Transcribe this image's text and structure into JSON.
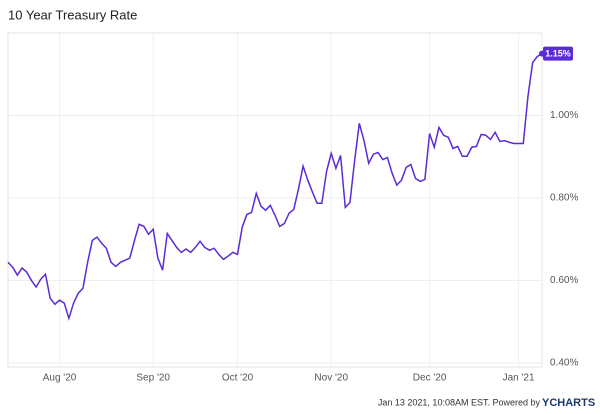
{
  "chart_data": {
    "type": "line",
    "title": "10 Year Treasury Rate",
    "footer": "Jan 13 2021, 10:08AM EST. Powered by",
    "brand": "YCHARTS",
    "color": "#5b2bd6",
    "categories": [
      null,
      null,
      null,
      null,
      null,
      null,
      null,
      null,
      null,
      null,
      null,
      "Aug '20",
      null,
      null,
      null,
      null,
      null,
      null,
      null,
      null,
      null,
      null,
      null,
      null,
      null,
      null,
      null,
      null,
      null,
      null,
      null,
      "Sep '20",
      null,
      null,
      null,
      null,
      null,
      null,
      null,
      null,
      null,
      null,
      null,
      null,
      null,
      null,
      null,
      null,
      null,
      "Oct '20",
      null,
      null,
      null,
      null,
      null,
      null,
      null,
      null,
      null,
      null,
      null,
      null,
      null,
      null,
      null,
      null,
      null,
      null,
      null,
      "Nov '20",
      null,
      null,
      null,
      null,
      null,
      null,
      null,
      null,
      null,
      null,
      null,
      null,
      null,
      null,
      null,
      null,
      null,
      null,
      null,
      null,
      "Dec '20",
      null,
      null,
      null,
      null,
      null,
      null,
      null,
      null,
      null,
      null,
      null,
      null,
      null,
      null,
      null,
      null,
      null,
      null,
      "Jan '21",
      null,
      null,
      null,
      null,
      null
    ],
    "values": [
      0.644,
      0.632,
      0.613,
      0.63,
      0.62,
      0.6,
      0.584,
      0.603,
      0.615,
      0.557,
      0.542,
      0.552,
      0.545,
      0.508,
      0.545,
      0.569,
      0.581,
      0.644,
      0.697,
      0.705,
      0.69,
      0.678,
      0.644,
      0.634,
      0.644,
      0.649,
      0.654,
      0.697,
      0.736,
      0.731,
      0.712,
      0.724,
      0.654,
      0.625,
      0.714,
      0.697,
      0.68,
      0.668,
      0.676,
      0.668,
      0.68,
      0.695,
      0.68,
      0.673,
      0.678,
      0.663,
      0.651,
      0.659,
      0.668,
      0.663,
      0.729,
      0.76,
      0.765,
      0.811,
      0.78,
      0.77,
      0.782,
      0.758,
      0.731,
      0.738,
      0.763,
      0.772,
      0.821,
      0.877,
      0.843,
      0.814,
      0.787,
      0.787,
      0.864,
      0.908,
      0.872,
      0.903,
      0.777,
      0.789,
      0.891,
      0.981,
      0.939,
      0.884,
      0.906,
      0.91,
      0.893,
      0.898,
      0.86,
      0.831,
      0.843,
      0.874,
      0.881,
      0.847,
      0.84,
      0.845,
      0.956,
      0.923,
      0.971,
      0.952,
      0.947,
      0.92,
      0.925,
      0.901,
      0.901,
      0.923,
      0.925,
      0.954,
      0.952,
      0.942,
      0.959,
      0.937,
      0.939,
      0.935,
      0.932,
      0.932,
      0.932,
      1.046,
      1.128,
      1.143,
      1.15
    ],
    "value_labels": [
      null,
      null,
      null,
      null,
      null,
      null,
      null,
      null,
      null,
      null,
      null,
      null,
      null,
      null,
      null,
      null,
      null,
      null,
      null,
      null,
      null,
      null,
      null,
      null,
      null,
      null,
      null,
      null,
      null,
      null,
      null,
      null,
      null,
      null,
      null,
      null,
      null,
      null,
      null,
      null,
      null,
      null,
      null,
      null,
      null,
      null,
      null,
      null,
      null,
      null,
      null,
      null,
      null,
      null,
      null,
      null,
      null,
      null,
      null,
      null,
      null,
      null,
      null,
      null,
      null,
      null,
      null,
      null,
      null,
      null,
      null,
      null,
      null,
      null,
      null,
      null,
      null,
      null,
      null,
      null,
      null,
      null,
      null,
      null,
      null,
      null,
      null,
      null,
      null,
      null,
      null,
      null,
      null,
      null,
      null,
      null,
      null,
      null,
      null,
      null,
      null,
      null,
      null,
      null,
      null,
      null,
      null,
      null,
      null,
      null,
      null,
      null,
      null,
      null,
      "1.15%"
    ],
    "ylim": [
      0.39,
      1.2
    ],
    "yticks": [
      {
        "value": 0.4,
        "label": "0.40%"
      },
      {
        "value": 0.6,
        "label": "0.60%"
      },
      {
        "value": 0.8,
        "label": "0.80%"
      },
      {
        "value": 1.0,
        "label": "1.00%"
      }
    ],
    "grid": true
  }
}
